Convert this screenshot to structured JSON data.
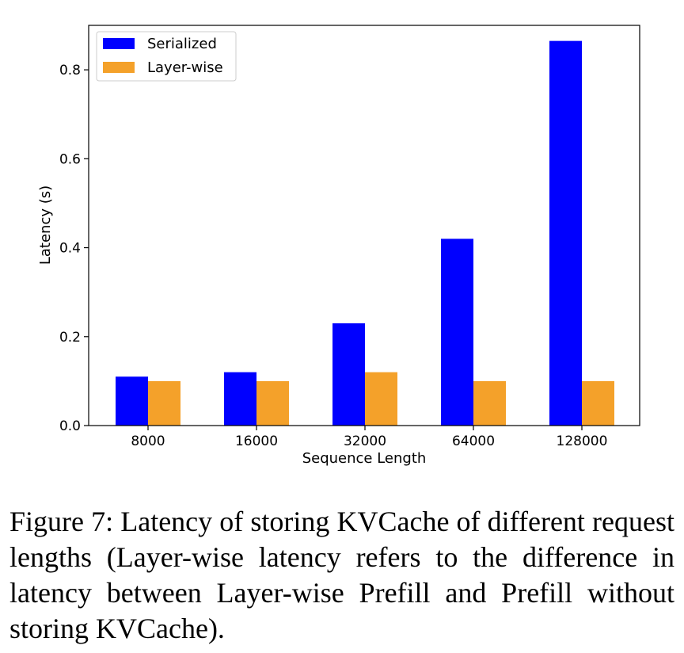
{
  "chart_data": {
    "type": "bar",
    "categories": [
      "8000",
      "16000",
      "32000",
      "64000",
      "128000"
    ],
    "series": [
      {
        "name": "Serialized",
        "color": "#0000ff",
        "values": [
          0.11,
          0.12,
          0.23,
          0.42,
          0.865
        ]
      },
      {
        "name": "Layer-wise",
        "color": "#f4a12a",
        "values": [
          0.1,
          0.1,
          0.12,
          0.1,
          0.1
        ]
      }
    ],
    "xlabel": "Sequence Length",
    "ylabel": "Latency (s)",
    "ylim": [
      0,
      0.9
    ],
    "yticks": [
      "0.0",
      "0.2",
      "0.4",
      "0.6",
      "0.8"
    ],
    "legend_position": "top-left",
    "grid": false
  },
  "caption": "Figure 7: Latency of storing KVCache of different request lengths (Layer-wise latency refers to the difference in latency between Layer-wise Prefill and Prefill without storing KVCache)."
}
